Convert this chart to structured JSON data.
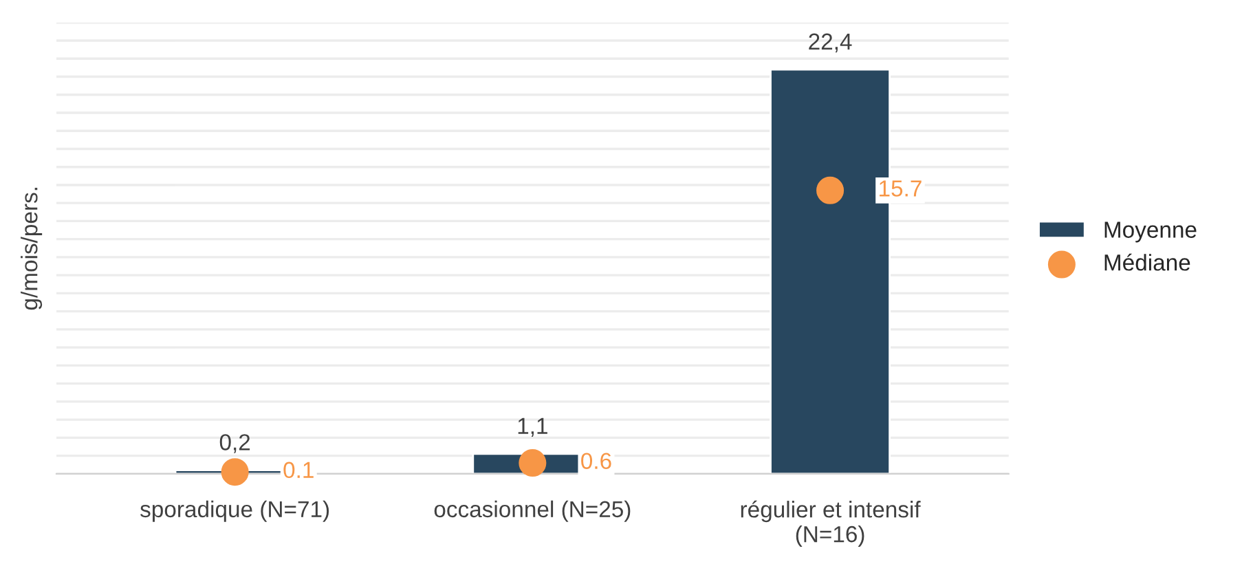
{
  "chart_data": {
    "type": "bar",
    "ylabel": "g/mois/pers.",
    "categories": [
      "sporadique (N=71)",
      "occasionnel (N=25)",
      "régulier et intensif\n(N=16)"
    ],
    "series": [
      {
        "name": "Moyenne",
        "color": "#28475f",
        "values": [
          0.2,
          1.1,
          22.4
        ],
        "value_labels": [
          "0,2",
          "1,1",
          "22,4"
        ]
      },
      {
        "name": "Médiane",
        "type": "scatter",
        "color": "#f79646",
        "values": [
          0.1,
          0.6,
          15.7
        ],
        "value_labels": [
          "0.1",
          "0.6",
          "15.7"
        ]
      }
    ],
    "ylim": [
      0,
      25
    ],
    "yticks": [
      {
        "value": 0,
        "label": null
      },
      {
        "value": 1,
        "label": null
      },
      {
        "value": 2,
        "label": null
      },
      {
        "value": 3,
        "label": null
      },
      {
        "value": 4,
        "label": null
      },
      {
        "value": 5,
        "label": null
      },
      {
        "value": 6,
        "label": null
      },
      {
        "value": 7,
        "label": null
      },
      {
        "value": 8,
        "label": null
      },
      {
        "value": 9,
        "label": null
      },
      {
        "value": 10,
        "label": null
      },
      {
        "value": 11,
        "label": null
      },
      {
        "value": 12,
        "label": null
      },
      {
        "value": 13,
        "label": null
      },
      {
        "value": 14,
        "label": null
      },
      {
        "value": 15,
        "label": null
      },
      {
        "value": 16,
        "label": null
      },
      {
        "value": 17,
        "label": null
      },
      {
        "value": 18,
        "label": null
      },
      {
        "value": 19,
        "label": null
      },
      {
        "value": 20,
        "label": null
      },
      {
        "value": 21,
        "label": null
      },
      {
        "value": 22,
        "label": null
      },
      {
        "value": 23,
        "label": null
      },
      {
        "value": 24,
        "label": null
      },
      {
        "value": 25,
        "label": null
      }
    ],
    "grid": "y",
    "legend": "right",
    "marker": "circle"
  }
}
